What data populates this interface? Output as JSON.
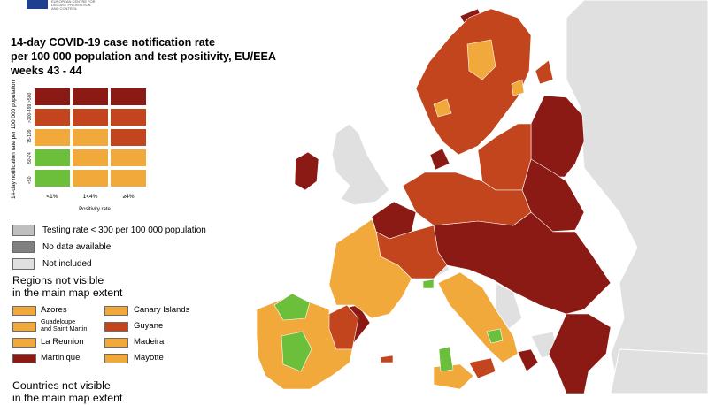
{
  "header": {
    "agency_logo_text": "EUROPEAN CENTRE FOR DISEASE PREVENTION AND CONTROL",
    "title_lines": [
      "14-day COVID-19 case notification rate",
      "per 100 000 population and test positivity, EU/EEA",
      "weeks 43 - 44"
    ]
  },
  "colors": {
    "green": "#6bbf3a",
    "orange": "#f2a93b",
    "red": "#c2451e",
    "darkred": "#8b1a14",
    "grey_testing": "#bfbfbf",
    "grey_nodata": "#808080",
    "grey_notincluded": "#e0e0e0",
    "sea": "#ffffff"
  },
  "matrix": {
    "y_axis_label": "14-day notification rate per 100 000 population",
    "x_axis_label": "Positivity rate",
    "row_labels": [
      ">500",
      ">200-499",
      "75-199",
      "50-74",
      "<50"
    ],
    "column_labels": [
      "<1%",
      "1<4%",
      "≥4%"
    ],
    "cells": [
      [
        "darkred",
        "darkred",
        "darkred"
      ],
      [
        "red",
        "red",
        "red"
      ],
      [
        "orange",
        "orange",
        "red"
      ],
      [
        "green",
        "orange",
        "orange"
      ],
      [
        "green",
        "orange",
        "orange"
      ]
    ]
  },
  "legend": {
    "items": [
      {
        "label": "Testing rate < 300 per 100 000 population",
        "color": "grey_testing"
      },
      {
        "label": "No data available",
        "color": "grey_nodata"
      },
      {
        "label": "Not included",
        "color": "grey_notincluded"
      }
    ]
  },
  "regions": {
    "heading_lines": [
      "Regions not visible",
      "in the main map extent"
    ],
    "items": [
      {
        "label": "Azores",
        "color": "orange",
        "small": false
      },
      {
        "label": "Canary Islands",
        "color": "orange",
        "small": false
      },
      {
        "label": "Guadeloupe\nand Saint Martin",
        "color": "orange",
        "small": true
      },
      {
        "label": "Guyane",
        "color": "red",
        "small": false
      },
      {
        "label": "La Reunion",
        "color": "orange",
        "small": false
      },
      {
        "label": "Madeira",
        "color": "orange",
        "small": false
      },
      {
        "label": "Martinique",
        "color": "darkred",
        "small": false
      },
      {
        "label": "Mayotte",
        "color": "orange",
        "small": false
      }
    ]
  },
  "countries": {
    "heading_lines": [
      "Countries not visible",
      "in the main map extent"
    ]
  }
}
